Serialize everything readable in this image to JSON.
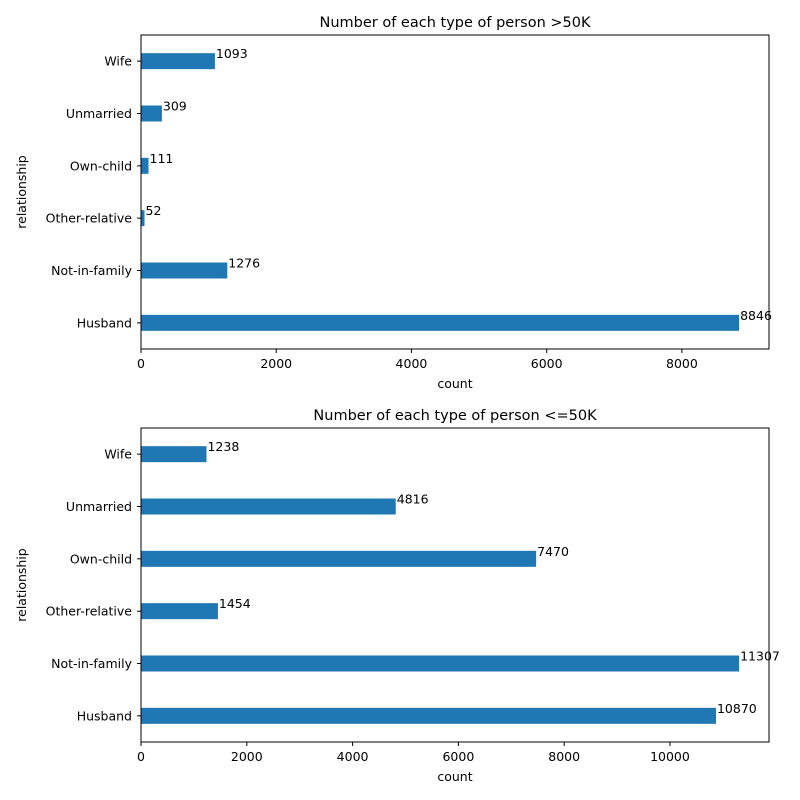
{
  "chart_data": [
    {
      "type": "bar",
      "orientation": "horizontal",
      "title": "Number of each type of person >50K",
      "xlabel": "count",
      "ylabel": "relationship",
      "categories": [
        "Husband",
        "Not-in-family",
        "Other-relative",
        "Own-child",
        "Unmarried",
        "Wife"
      ],
      "values": [
        8846,
        1276,
        52,
        111,
        309,
        1093
      ],
      "xlim": [
        0,
        9288
      ],
      "xticks": [
        0,
        2000,
        4000,
        6000,
        8000
      ],
      "grid": false,
      "bar_color": "#1f77b4"
    },
    {
      "type": "bar",
      "orientation": "horizontal",
      "title": "Number of each type of person <=50K",
      "xlabel": "count",
      "ylabel": "relationship",
      "categories": [
        "Husband",
        "Not-in-family",
        "Other-relative",
        "Own-child",
        "Unmarried",
        "Wife"
      ],
      "values": [
        10870,
        11307,
        1454,
        7470,
        4816,
        1238
      ],
      "xlim": [
        0,
        11872
      ],
      "xticks": [
        0,
        2000,
        4000,
        6000,
        8000,
        10000
      ],
      "grid": false,
      "bar_color": "#1f77b4"
    }
  ]
}
